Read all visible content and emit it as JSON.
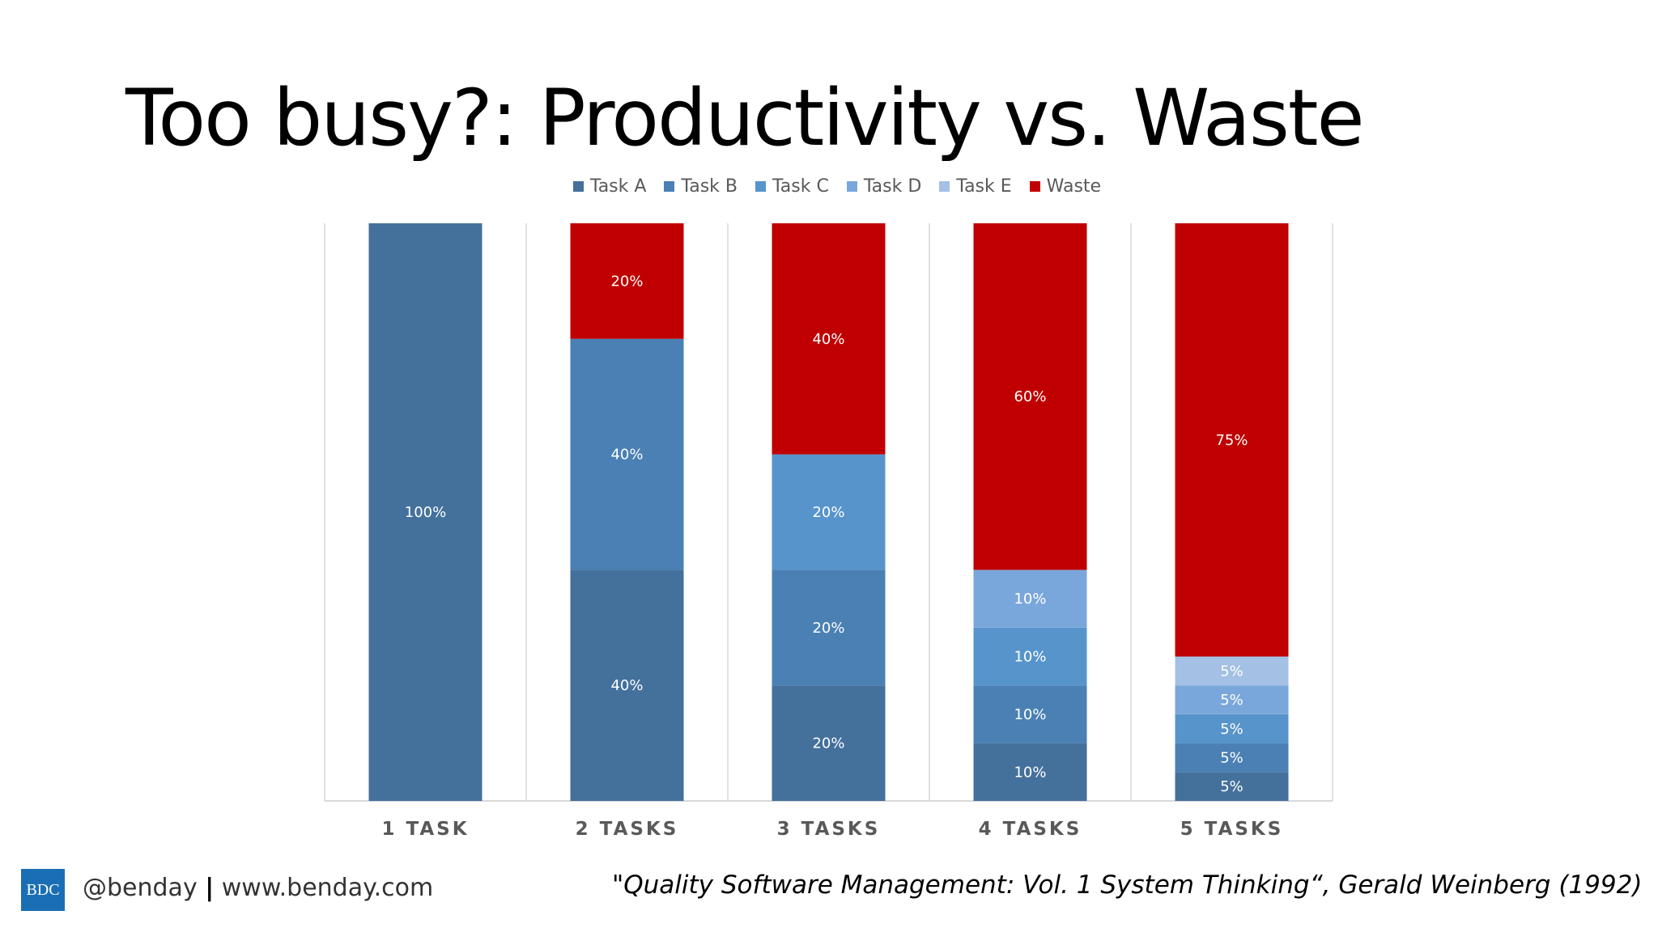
{
  "slide": {
    "title": "Too busy?: Productivity vs. Waste",
    "footer_logo": "BDC",
    "footer_handle": "@benday",
    "footer_separator": "|",
    "footer_website": "www.benday.com",
    "citation": "\"Quality Software Management: Vol. 1 System Thinking“, Gerald Weinberg (1992)"
  },
  "chart_data": {
    "type": "bar",
    "stacked": true,
    "categories": [
      "1 TASK",
      "2 TASKS",
      "3 TASKS",
      "4 TASKS",
      "5 TASKS"
    ],
    "series": [
      {
        "name": "Task A",
        "color": "#44709c",
        "values": [
          100,
          40,
          20,
          10,
          5
        ],
        "labels": [
          "100%",
          "40%",
          "20%",
          "10%",
          "5%"
        ]
      },
      {
        "name": "Task B",
        "color": "#4a80b4",
        "values": [
          0,
          40,
          20,
          10,
          5
        ],
        "labels": [
          "",
          "40%",
          "20%",
          "10%",
          "5%"
        ]
      },
      {
        "name": "Task C",
        "color": "#5794cb",
        "values": [
          0,
          0,
          20,
          10,
          5
        ],
        "labels": [
          "",
          "",
          "20%",
          "10%",
          "5%"
        ]
      },
      {
        "name": "Task D",
        "color": "#7aa7db",
        "values": [
          0,
          0,
          0,
          10,
          5
        ],
        "labels": [
          "",
          "",
          "",
          "10%",
          "5%"
        ]
      },
      {
        "name": "Task E",
        "color": "#a4c0e4",
        "values": [
          0,
          0,
          0,
          0,
          5
        ],
        "labels": [
          "",
          "",
          "",
          "",
          "5%"
        ]
      },
      {
        "name": "Waste",
        "color": "#c00000",
        "values": [
          0,
          20,
          40,
          60,
          75
        ],
        "labels": [
          "",
          "20%",
          "40%",
          "60%",
          "75%"
        ]
      }
    ],
    "ylim": [
      0,
      100
    ],
    "grid": false,
    "legend": "top"
  }
}
